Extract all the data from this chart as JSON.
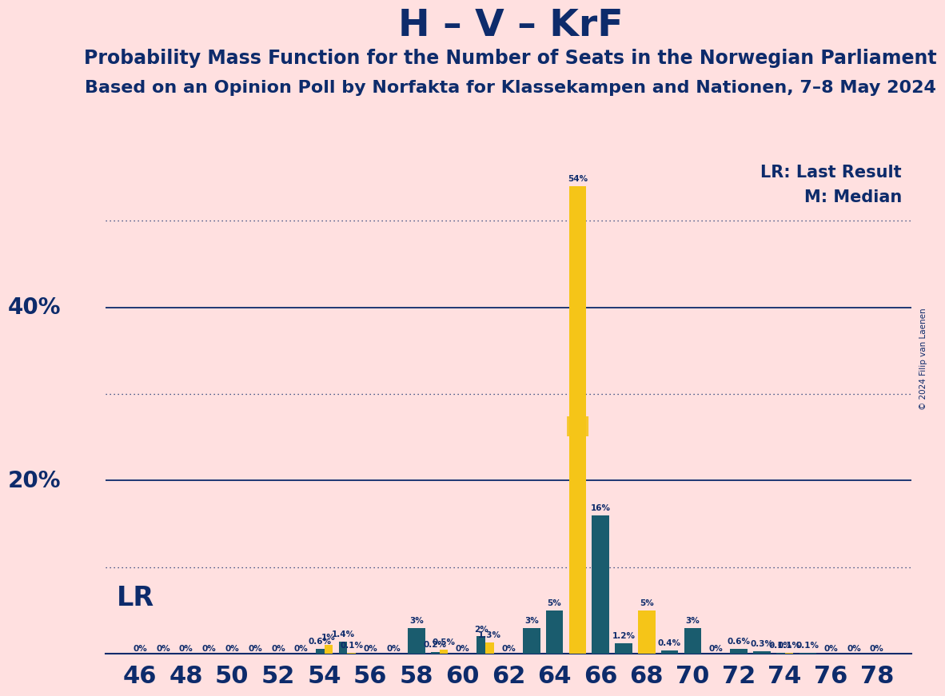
{
  "title": "H – V – KrF",
  "subtitle1": "Probability Mass Function for the Number of Seats in the Norwegian Parliament",
  "subtitle2": "Based on an Opinion Poll by Norfakta for Klassekampen and Nationen, 7–8 May 2024",
  "copyright": "© 2024 Filip van Laenen",
  "x_ticks": [
    46,
    48,
    50,
    52,
    54,
    56,
    58,
    60,
    62,
    64,
    66,
    68,
    70,
    72,
    74,
    76,
    78
  ],
  "xlabel_seats": [
    "46",
    "48",
    "50",
    "52",
    "54",
    "56",
    "58",
    "60",
    "62",
    "64",
    "66",
    "68",
    "70",
    "72",
    "74",
    "76",
    "78"
  ],
  "lr_label": "LR: Last Result",
  "m_label": "M: Median",
  "lr_text": "LR",
  "m_text": "M",
  "background_color": "#FFE0E0",
  "bar_color_teal": "#1A5C6E",
  "bar_color_yellow": "#F5C518",
  "text_color": "#0D2B6B",
  "solid_gridlines": [
    0,
    20,
    40
  ],
  "dotted_gridlines": [
    10,
    30,
    50
  ],
  "bars": [
    {
      "seat": 46,
      "teal": 0.0,
      "yellow": 0.0
    },
    {
      "seat": 47,
      "teal": 0.0,
      "yellow": 0.0
    },
    {
      "seat": 48,
      "teal": 0.0,
      "yellow": 0.0
    },
    {
      "seat": 49,
      "teal": 0.0,
      "yellow": 0.0
    },
    {
      "seat": 50,
      "teal": 0.0,
      "yellow": 0.0
    },
    {
      "seat": 51,
      "teal": 0.0,
      "yellow": 0.0
    },
    {
      "seat": 52,
      "teal": 0.0,
      "yellow": 0.0
    },
    {
      "seat": 53,
      "teal": 0.0,
      "yellow": 0.0
    },
    {
      "seat": 54,
      "teal": 0.6,
      "yellow": 1.0
    },
    {
      "seat": 55,
      "teal": 1.4,
      "yellow": 0.1
    },
    {
      "seat": 56,
      "teal": 0.0,
      "yellow": 0.0
    },
    {
      "seat": 57,
      "teal": 0.0,
      "yellow": 0.0
    },
    {
      "seat": 58,
      "teal": 3.0,
      "yellow": 0.0
    },
    {
      "seat": 59,
      "teal": 0.2,
      "yellow": 0.5
    },
    {
      "seat": 60,
      "teal": 0.0,
      "yellow": 0.0
    },
    {
      "seat": 61,
      "teal": 2.0,
      "yellow": 1.3
    },
    {
      "seat": 62,
      "teal": 0.0,
      "yellow": 0.0
    },
    {
      "seat": 63,
      "teal": 3.0,
      "yellow": 0.0
    },
    {
      "seat": 64,
      "teal": 5.0,
      "yellow": 0.0
    },
    {
      "seat": 65,
      "teal": 0.0,
      "yellow": 54.0
    },
    {
      "seat": 66,
      "teal": 16.0,
      "yellow": 0.0
    },
    {
      "seat": 67,
      "teal": 1.2,
      "yellow": 0.0
    },
    {
      "seat": 68,
      "teal": 0.0,
      "yellow": 5.0
    },
    {
      "seat": 69,
      "teal": 0.4,
      "yellow": 0.0
    },
    {
      "seat": 70,
      "teal": 3.0,
      "yellow": 0.0
    },
    {
      "seat": 71,
      "teal": 0.0,
      "yellow": 0.0
    },
    {
      "seat": 72,
      "teal": 0.6,
      "yellow": 0.0
    },
    {
      "seat": 73,
      "teal": 0.3,
      "yellow": 0.0
    },
    {
      "seat": 74,
      "teal": 0.1,
      "yellow": 0.1
    },
    {
      "seat": 75,
      "teal": 0.1,
      "yellow": 0.0
    },
    {
      "seat": 76,
      "teal": 0.0,
      "yellow": 0.0
    },
    {
      "seat": 77,
      "teal": 0.0,
      "yellow": 0.0
    },
    {
      "seat": 78,
      "teal": 0.0,
      "yellow": 0.0
    }
  ],
  "lr_seat": 65,
  "median_seat": 65,
  "ylim": [
    0,
    58
  ],
  "bar_width": 0.75,
  "label_fontsize": 7.5,
  "title_fontsize": 34,
  "subtitle_fontsize": 17,
  "subtitle2_fontsize": 16,
  "ytick_fontsize": 20,
  "xtick_fontsize": 22
}
